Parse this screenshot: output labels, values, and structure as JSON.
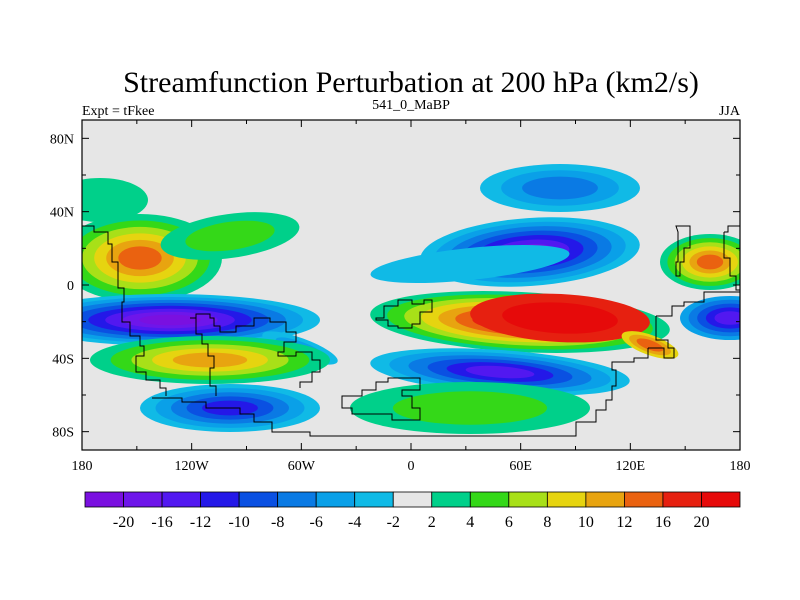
{
  "title": "Streamfunction Perturbation at 200 hPa (km2/s)",
  "left_label": "Expt = tFkee",
  "center_label": "541_0_MaBP",
  "right_label": "JJA",
  "lat_ticks": [
    "80N",
    "40N",
    "0",
    "40S",
    "80S"
  ],
  "lon_ticks": [
    "180",
    "120W",
    "60W",
    "0",
    "60E",
    "120E",
    "180"
  ],
  "colorbar_labels": [
    "-20",
    "-16",
    "-12",
    "-10",
    "-8",
    "-6",
    "-4",
    "-2",
    "2",
    "4",
    "6",
    "8",
    "10",
    "12",
    "16",
    "20"
  ],
  "colors": {
    "background": "#e6e6e6",
    "palette": [
      "#7a10e0",
      "#6e16ea",
      "#5218f0",
      "#2418e8",
      "#0a50e2",
      "#0a7ae4",
      "#0aa0e8",
      "#10bae6",
      "#e6e6e6",
      "#00d08a",
      "#34d818",
      "#a8e018",
      "#e6d410",
      "#e8a410",
      "#ea6210",
      "#e62010",
      "#e60a0a"
    ]
  }
}
